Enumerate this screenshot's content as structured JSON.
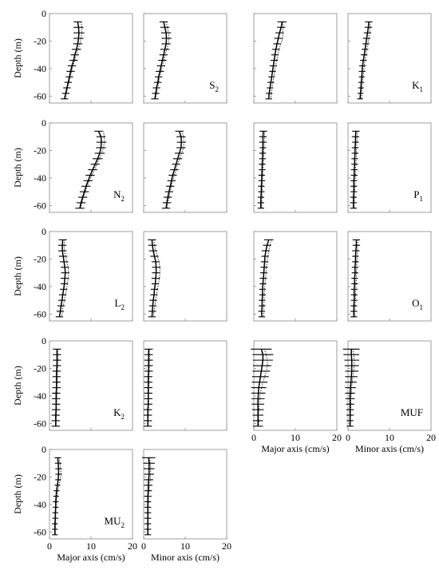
{
  "chart_data": {
    "type": "line",
    "y_axis_label": "Depth (m)",
    "x_axis_labels": {
      "major": "Major axis (cm/s)",
      "minor": "Minor axis (cm/s)"
    },
    "x_ticks": [
      "0",
      "10",
      "20"
    ],
    "y_ticks": [
      "0",
      "-20",
      "-40",
      "-60"
    ],
    "xlim": [
      0,
      20
    ],
    "ylim": [
      -65,
      0
    ],
    "depth": [
      -6,
      -10,
      -14,
      -18,
      -22,
      -26,
      -30,
      -34,
      -38,
      -42,
      -46,
      -50,
      -54,
      -58,
      -62
    ],
    "constituents": [
      {
        "label": "S",
        "sub": "2",
        "minor_label": true,
        "major": {
          "solid": [
            6.8,
            7.0,
            7.1,
            7.0,
            6.8,
            6.5,
            6.1,
            5.8,
            5.4,
            5.1,
            4.8,
            4.5,
            4.2,
            3.9,
            3.6
          ],
          "dotted": [
            7.6,
            7.8,
            7.8,
            7.6,
            7.3,
            6.9,
            6.5,
            6.1,
            5.7,
            5.3,
            5.0,
            4.7,
            4.4,
            4.1,
            3.9
          ],
          "err": [
            1.0,
            1.2,
            1.3,
            1.2,
            1.1,
            1.1,
            1.0,
            1.0,
            1.0,
            1.0,
            0.9,
            0.9,
            0.9,
            0.9,
            0.9
          ]
        },
        "minor": {
          "solid": [
            4.8,
            5.1,
            5.4,
            5.5,
            5.4,
            5.1,
            4.8,
            4.5,
            4.2,
            3.9,
            3.6,
            3.4,
            3.1,
            2.9,
            2.7
          ],
          "dotted": [
            5.4,
            5.7,
            6.0,
            6.1,
            5.9,
            5.6,
            5.2,
            4.9,
            4.5,
            4.2,
            3.9,
            3.6,
            3.4,
            3.1,
            2.9
          ],
          "err": [
            1.0,
            1.1,
            1.2,
            1.2,
            1.1,
            1.1,
            1.0,
            1.0,
            1.0,
            1.0,
            0.9,
            0.9,
            0.9,
            0.9,
            0.9
          ]
        }
      },
      {
        "label": "K",
        "sub": "1",
        "minor_label": true,
        "major": {
          "solid": [
            6.8,
            6.6,
            6.2,
            5.9,
            5.6,
            5.3,
            5.1,
            4.9,
            4.7,
            4.5,
            4.3,
            4.1,
            3.9,
            3.7,
            3.6
          ],
          "dotted": [
            7.0,
            7.0,
            7.0,
            7.0,
            6.5,
            6.1,
            5.8,
            5.5,
            5.2,
            5.0,
            4.8,
            4.6,
            4.4,
            4.2,
            4.1
          ],
          "err": [
            1.1,
            1.0,
            1.0,
            1.0,
            0.9,
            0.9,
            0.9,
            0.9,
            0.9,
            0.8,
            0.8,
            0.8,
            0.8,
            0.8,
            0.8
          ]
        },
        "minor": {
          "solid": [
            5.0,
            4.9,
            4.7,
            4.5,
            4.3,
            4.1,
            3.9,
            3.7,
            3.5,
            3.4,
            3.3,
            3.2,
            3.1,
            3.0,
            2.9
          ],
          "dotted": [
            5.3,
            5.3,
            5.2,
            5.0,
            4.8,
            4.5,
            4.3,
            4.1,
            3.9,
            3.8,
            3.6,
            3.5,
            3.4,
            3.3,
            3.2
          ],
          "err": [
            0.9,
            0.9,
            0.9,
            0.9,
            0.8,
            0.8,
            0.8,
            0.8,
            0.8,
            0.8,
            0.7,
            0.7,
            0.7,
            0.7,
            0.7
          ]
        }
      },
      {
        "label": "N",
        "sub": "2",
        "minor_label": false,
        "major": {
          "solid": [
            11.8,
            12.4,
            12.5,
            12.4,
            12.1,
            11.6,
            11.0,
            10.4,
            9.8,
            9.3,
            8.8,
            8.4,
            8.0,
            7.6,
            7.3
          ],
          "dotted": [
            13.0,
            13.2,
            13.2,
            13.0,
            12.6,
            12.0,
            11.4,
            10.8,
            10.2,
            9.6,
            9.1,
            8.6,
            8.2,
            7.8,
            7.5
          ],
          "err": [
            1.0,
            1.1,
            1.2,
            1.2,
            1.2,
            1.2,
            1.1,
            1.1,
            1.1,
            1.1,
            1.1,
            1.1,
            1.1,
            1.1,
            1.1
          ]
        },
        "minor": {
          "solid": [
            8.6,
            9.0,
            9.1,
            9.0,
            8.6,
            8.2,
            7.8,
            7.4,
            7.0,
            6.7,
            6.4,
            6.1,
            5.8,
            5.6,
            5.4
          ],
          "dotted": [
            9.2,
            9.6,
            9.7,
            9.6,
            9.2,
            8.7,
            8.2,
            7.8,
            7.4,
            7.0,
            6.7,
            6.4,
            6.1,
            5.8,
            5.6
          ],
          "err": [
            1.0,
            1.1,
            1.1,
            1.1,
            1.1,
            1.1,
            1.0,
            1.0,
            1.0,
            1.0,
            1.0,
            1.0,
            1.0,
            1.0,
            1.0
          ]
        }
      },
      {
        "label": "P",
        "sub": "1",
        "minor_label": true,
        "major": {
          "solid": [
            2.3,
            2.2,
            2.2,
            2.2,
            2.1,
            2.1,
            2.0,
            2.0,
            1.9,
            1.9,
            1.8,
            1.8,
            1.7,
            1.7,
            1.7
          ],
          "dotted": [
            2.6,
            2.6,
            2.5,
            2.5,
            2.4,
            2.4,
            2.3,
            2.2,
            2.2,
            2.1,
            2.1,
            2.0,
            2.0,
            1.9,
            1.9
          ],
          "err": [
            0.9,
            0.9,
            0.9,
            0.8,
            0.8,
            0.8,
            0.8,
            0.8,
            0.8,
            0.8,
            0.8,
            0.8,
            0.8,
            0.8,
            0.8
          ]
        },
        "minor": {
          "solid": [
            1.9,
            1.8,
            1.8,
            1.7,
            1.7,
            1.6,
            1.6,
            1.5,
            1.5,
            1.4,
            1.4,
            1.4,
            1.3,
            1.3,
            1.3
          ],
          "dotted": [
            2.2,
            2.2,
            2.1,
            2.1,
            2.0,
            2.0,
            1.9,
            1.8,
            1.8,
            1.7,
            1.7,
            1.6,
            1.6,
            1.5,
            1.5
          ],
          "err": [
            0.9,
            0.9,
            0.8,
            0.8,
            0.8,
            0.8,
            0.8,
            0.8,
            0.8,
            0.8,
            0.8,
            0.8,
            0.8,
            0.8,
            0.8
          ]
        }
      },
      {
        "label": "L",
        "sub": "2",
        "minor_label": false,
        "major": {
          "solid": [
            3.2,
            3.1,
            3.1,
            3.3,
            3.5,
            3.7,
            3.8,
            3.7,
            3.6,
            3.4,
            3.2,
            3.0,
            2.8,
            2.6,
            2.4
          ],
          "dotted": [
            3.6,
            3.5,
            3.6,
            3.9,
            4.2,
            4.5,
            4.6,
            4.5,
            4.3,
            4.1,
            3.8,
            3.6,
            3.3,
            3.1,
            2.9
          ],
          "err": [
            1.0,
            1.0,
            1.0,
            1.0,
            1.0,
            1.0,
            1.0,
            1.0,
            0.9,
            0.9,
            0.9,
            0.9,
            0.9,
            0.9,
            0.9
          ]
        },
        "minor": {
          "solid": [
            2.0,
            2.1,
            2.3,
            2.6,
            2.9,
            3.0,
            3.0,
            2.9,
            2.8,
            2.6,
            2.5,
            2.3,
            2.2,
            2.1,
            2.0
          ],
          "dotted": [
            2.4,
            2.6,
            2.9,
            3.3,
            3.7,
            3.9,
            3.9,
            3.8,
            3.6,
            3.3,
            3.1,
            2.9,
            2.7,
            2.5,
            2.4
          ],
          "err": [
            1.0,
            1.0,
            1.0,
            1.0,
            1.0,
            1.0,
            1.0,
            1.0,
            0.9,
            0.9,
            0.9,
            0.9,
            0.9,
            0.9,
            0.9
          ]
        }
      },
      {
        "label": "O",
        "sub": "1",
        "minor_label": true,
        "major": {
          "solid": [
            3.6,
            3.2,
            2.9,
            2.7,
            2.6,
            2.5,
            2.4,
            2.3,
            2.2,
            2.1,
            2.1,
            2.0,
            2.0,
            1.9,
            1.9
          ],
          "dotted": [
            4.2,
            3.9,
            3.6,
            3.4,
            3.2,
            3.0,
            2.9,
            2.8,
            2.7,
            2.6,
            2.5,
            2.5,
            2.4,
            2.4,
            2.3
          ],
          "err": [
            1.1,
            1.0,
            1.0,
            0.9,
            0.9,
            0.9,
            0.9,
            0.9,
            0.8,
            0.8,
            0.8,
            0.8,
            0.8,
            0.8,
            0.8
          ]
        },
        "minor": {
          "solid": [
            2.0,
            2.0,
            1.9,
            1.8,
            1.8,
            1.7,
            1.7,
            1.6,
            1.6,
            1.5,
            1.5,
            1.5,
            1.4,
            1.4,
            1.4
          ],
          "dotted": [
            2.4,
            2.3,
            2.3,
            2.2,
            2.1,
            2.1,
            2.0,
            2.0,
            1.9,
            1.9,
            1.8,
            1.8,
            1.7,
            1.7,
            1.7
          ],
          "err": [
            0.9,
            0.9,
            0.9,
            0.8,
            0.8,
            0.8,
            0.8,
            0.8,
            0.8,
            0.8,
            0.8,
            0.8,
            0.8,
            0.8,
            0.8
          ]
        }
      },
      {
        "label": "K",
        "sub": "2",
        "minor_label": false,
        "major": {
          "solid": [
            1.8,
            1.8,
            1.8,
            1.8,
            1.7,
            1.7,
            1.7,
            1.7,
            1.6,
            1.6,
            1.6,
            1.6,
            1.5,
            1.5,
            1.5
          ],
          "dotted": [
            2.0,
            2.0,
            2.0,
            2.0,
            1.9,
            1.9,
            1.9,
            1.8,
            1.8,
            1.8,
            1.7,
            1.7,
            1.7,
            1.6,
            1.6
          ],
          "err": [
            1.0,
            1.0,
            1.0,
            1.0,
            1.0,
            1.0,
            1.0,
            1.0,
            1.0,
            1.0,
            1.0,
            1.0,
            1.0,
            1.0,
            1.0
          ]
        },
        "minor": {
          "solid": [
            1.2,
            1.2,
            1.2,
            1.2,
            1.2,
            1.1,
            1.1,
            1.1,
            1.1,
            1.1,
            1.1,
            1.0,
            1.0,
            1.0,
            1.0
          ],
          "dotted": [
            1.4,
            1.4,
            1.4,
            1.4,
            1.3,
            1.3,
            1.3,
            1.3,
            1.2,
            1.2,
            1.2,
            1.2,
            1.1,
            1.1,
            1.1
          ],
          "err": [
            1.0,
            1.0,
            1.0,
            1.0,
            1.0,
            1.0,
            1.0,
            1.0,
            1.0,
            1.0,
            1.0,
            1.0,
            1.0,
            1.0,
            1.0
          ]
        }
      },
      {
        "label": "MUF",
        "sub": "",
        "minor_label": true,
        "major": {
          "solid": [
            1.8,
            2.2,
            2.2,
            2.0,
            1.8,
            1.6,
            1.4,
            1.2,
            1.1,
            1.0,
            1.0,
            1.0,
            1.0,
            1.0,
            1.0
          ],
          "dotted": [
            2.5,
            3.0,
            3.2,
            3.3,
            3.0,
            2.6,
            2.2,
            1.9,
            1.6,
            1.4,
            1.3,
            1.2,
            1.2,
            1.2,
            1.2
          ],
          "err": [
            2.5,
            2.5,
            2.4,
            2.2,
            2.1,
            2.0,
            1.9,
            1.8,
            1.7,
            1.6,
            1.5,
            1.4,
            1.3,
            1.2,
            1.2
          ]
        },
        "minor": {
          "solid": [
            0.8,
            0.8,
            0.9,
            0.9,
            0.9,
            0.8,
            0.7,
            0.6,
            0.5,
            0.5,
            0.5,
            0.5,
            0.5,
            0.5,
            0.5
          ],
          "dotted": [
            1.2,
            1.4,
            1.5,
            1.5,
            1.4,
            1.2,
            1.0,
            0.9,
            0.8,
            0.7,
            0.7,
            0.7,
            0.6,
            0.6,
            0.6
          ],
          "err": [
            2.0,
            1.9,
            1.8,
            1.7,
            1.6,
            1.5,
            1.4,
            1.3,
            1.2,
            1.1,
            1.0,
            0.9,
            0.9,
            0.8,
            0.8
          ]
        }
      },
      {
        "label": "MU",
        "sub": "2",
        "minor_label": false,
        "major": {
          "solid": [
            2.0,
            2.1,
            2.2,
            2.2,
            2.1,
            1.9,
            1.7,
            1.6,
            1.5,
            1.5,
            1.4,
            1.4,
            1.3,
            1.3,
            1.3
          ],
          "dotted": [
            2.3,
            2.5,
            2.7,
            2.8,
            2.6,
            2.3,
            2.0,
            1.8,
            1.7,
            1.6,
            1.5,
            1.5,
            1.5,
            1.4,
            1.4
          ],
          "err": [
            0.8,
            0.8,
            0.8,
            0.8,
            0.7,
            0.7,
            0.7,
            0.7,
            0.7,
            0.7,
            0.7,
            0.7,
            0.7,
            0.7,
            0.7
          ]
        },
        "minor": {
          "solid": [
            1.2,
            1.3,
            1.3,
            1.3,
            1.2,
            1.1,
            1.1,
            1.0,
            1.0,
            1.0,
            1.0,
            1.0,
            1.0,
            1.0,
            1.0
          ],
          "dotted": [
            1.5,
            1.6,
            1.7,
            1.7,
            1.6,
            1.4,
            1.3,
            1.2,
            1.2,
            1.1,
            1.1,
            1.1,
            1.1,
            1.1,
            1.1
          ],
          "err": [
            1.6,
            1.4,
            1.3,
            1.2,
            1.1,
            1.0,
            0.9,
            0.9,
            0.8,
            0.8,
            0.8,
            0.8,
            0.8,
            0.8,
            0.8
          ]
        }
      }
    ]
  }
}
